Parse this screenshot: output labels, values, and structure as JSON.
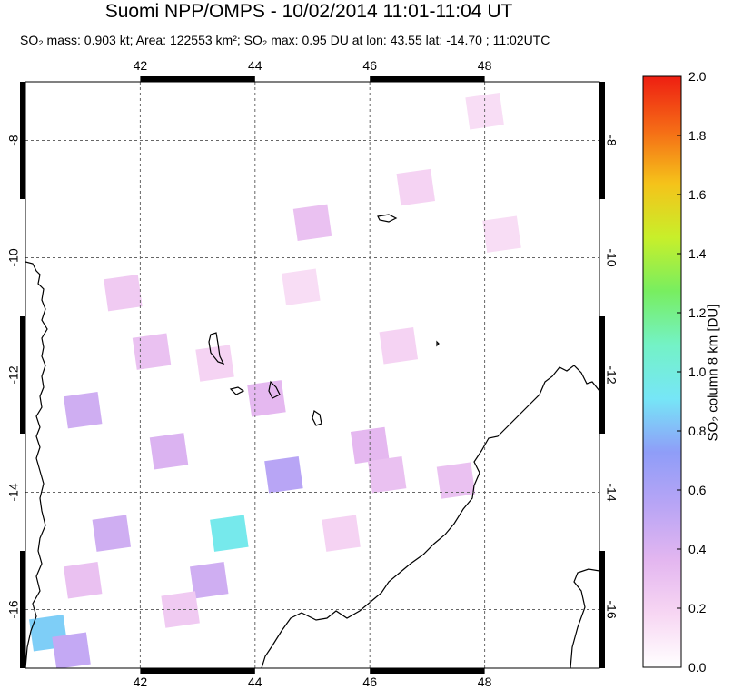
{
  "title": "Suomi NPP/OMPS - 10/02/2014 11:01-11:04 UT",
  "subtitle": {
    "so2_mass": "SO₂ mass: 0.903 kt; Area: 122553 km²; SO₂ max: 0.95 DU at lon: 43.55 lat: -14.70 ; 11:02UTC"
  },
  "map": {
    "lon_range": [
      40.0,
      50.0
    ],
    "lat_range": [
      -17.0,
      -7.0
    ],
    "lon_ticks": [
      "42",
      "44",
      "46",
      "48"
    ],
    "lat_ticks": [
      "-8",
      "-10",
      "-12",
      "-14",
      "-16"
    ],
    "gridlines": true
  },
  "colorbar": {
    "label": "SO₂ column 8 km [DU]",
    "ticks": [
      "0.0",
      "0.2",
      "0.4",
      "0.6",
      "0.8",
      "1.0",
      "1.2",
      "1.4",
      "1.6",
      "1.8",
      "2.0"
    ],
    "range": [
      0.0,
      2.0
    ],
    "colors": [
      "#ffffff",
      "#f7d6f3",
      "#e3b6f0",
      "#b9a5f5",
      "#8f9df8",
      "#76e6f7",
      "#74f2c6",
      "#78ee60",
      "#c8ef2a",
      "#f5c31a",
      "#f56b16",
      "#ee1f12"
    ]
  },
  "chart_data": {
    "type": "heatmap",
    "variable": "SO2 column 8 km [DU]",
    "cells": [
      {
        "lon": 43.55,
        "lat": -14.7,
        "value": 0.95
      },
      {
        "lon": 40.4,
        "lat": -16.4,
        "value": 0.85
      },
      {
        "lon": 40.8,
        "lat": -16.7,
        "value": 0.5
      },
      {
        "lon": 44.5,
        "lat": -13.7,
        "value": 0.55
      },
      {
        "lon": 41.5,
        "lat": -14.7,
        "value": 0.45
      },
      {
        "lon": 43.2,
        "lat": -15.5,
        "value": 0.45
      },
      {
        "lon": 41.0,
        "lat": -12.6,
        "value": 0.45
      },
      {
        "lon": 42.5,
        "lat": -13.3,
        "value": 0.4
      },
      {
        "lon": 46.0,
        "lat": -13.2,
        "value": 0.35
      },
      {
        "lon": 45.0,
        "lat": -9.4,
        "value": 0.3
      },
      {
        "lon": 42.2,
        "lat": -11.6,
        "value": 0.3
      },
      {
        "lon": 44.2,
        "lat": -12.4,
        "value": 0.35
      },
      {
        "lon": 46.3,
        "lat": -13.7,
        "value": 0.3
      },
      {
        "lon": 47.5,
        "lat": -13.8,
        "value": 0.3
      },
      {
        "lon": 41.7,
        "lat": -10.6,
        "value": 0.25
      },
      {
        "lon": 43.3,
        "lat": -11.8,
        "value": 0.2
      },
      {
        "lon": 46.8,
        "lat": -8.8,
        "value": 0.2
      },
      {
        "lon": 48.0,
        "lat": -7.5,
        "value": 0.15
      },
      {
        "lon": 44.8,
        "lat": -10.5,
        "value": 0.15
      },
      {
        "lon": 46.5,
        "lat": -11.5,
        "value": 0.2
      },
      {
        "lon": 41.0,
        "lat": -15.5,
        "value": 0.3
      },
      {
        "lon": 42.7,
        "lat": -16.0,
        "value": 0.25
      },
      {
        "lon": 45.5,
        "lat": -14.7,
        "value": 0.2
      },
      {
        "lon": 48.3,
        "lat": -9.6,
        "value": 0.15
      }
    ]
  }
}
